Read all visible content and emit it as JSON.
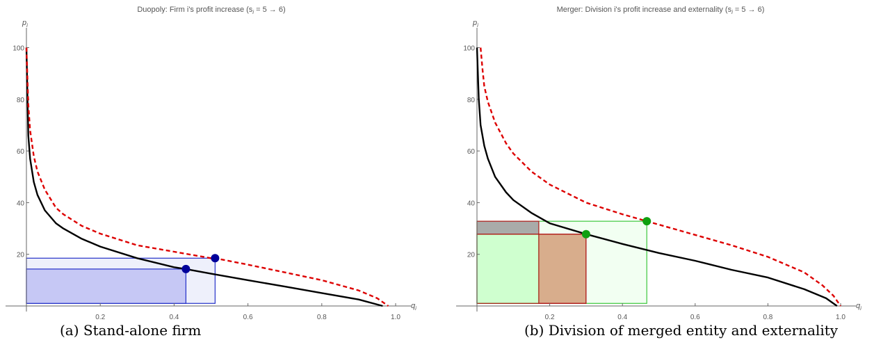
{
  "captions": {
    "a": "(a) Stand-alone firm",
    "b": "(b) Division of merged entity and externality"
  },
  "colors": {
    "base_curve": "#000000",
    "shifted_curve": "#dd0000",
    "blue_marker": "#00009a",
    "blue_fill": "#c6c8f5",
    "blue_fill_light": "#eef0fb",
    "blue_stroke": "#2430c8",
    "green_marker": "#10a010",
    "green_fill": "#cfffcf",
    "green_fill_light": "#f2fff2",
    "green_stroke": "#3cc83c",
    "red_stroke": "#b01818",
    "gray_fill": "#a9aba9",
    "brown_fill": "#d8ad8c"
  },
  "chart_data": [
    {
      "type": "line",
      "title": "Duopoly: Firm i's profit increase (s",
      "title_sub": "i",
      "title_tail": " = 5 → 6)",
      "xlabel": "q",
      "xlabel_sub": "i",
      "ylabel": "p",
      "ylabel_sub": "i",
      "xlim": [
        0,
        1.0
      ],
      "ylim": [
        0,
        100
      ],
      "xticks": [
        0.2,
        0.4,
        0.6,
        0.8,
        1.0
      ],
      "xtick_labels": [
        "0.2",
        "0.4",
        "0.6",
        "0.8",
        "1.0"
      ],
      "yticks": [
        20,
        40,
        60,
        80,
        100
      ],
      "ytick_labels": [
        "20",
        "40",
        "60",
        "80",
        "100"
      ],
      "series": [
        {
          "style": "solid",
          "points": [
            [
              0.0,
              100
            ],
            [
              0.005,
              66
            ],
            [
              0.01,
              57
            ],
            [
              0.02,
              48
            ],
            [
              0.03,
              43
            ],
            [
              0.05,
              37
            ],
            [
              0.08,
              32
            ],
            [
              0.1,
              30
            ],
            [
              0.15,
              26
            ],
            [
              0.2,
              23
            ],
            [
              0.3,
              18.5
            ],
            [
              0.4,
              15
            ],
            [
              0.432,
              14.3
            ],
            [
              0.5,
              12.5
            ],
            [
              0.6,
              10
            ],
            [
              0.7,
              7.5
            ],
            [
              0.8,
              5
            ],
            [
              0.9,
              2.5
            ],
            [
              0.965,
              0
            ]
          ]
        },
        {
          "style": "dashed",
          "points": [
            [
              0.0,
              100
            ],
            [
              0.005,
              78
            ],
            [
              0.01,
              68
            ],
            [
              0.02,
              58
            ],
            [
              0.03,
              52
            ],
            [
              0.05,
              45
            ],
            [
              0.08,
              38
            ],
            [
              0.1,
              35.5
            ],
            [
              0.15,
              31
            ],
            [
              0.2,
              28
            ],
            [
              0.3,
              23.5
            ],
            [
              0.4,
              21
            ],
            [
              0.5,
              18.5
            ],
            [
              0.511,
              18.5
            ],
            [
              0.6,
              16
            ],
            [
              0.7,
              13
            ],
            [
              0.8,
              10
            ],
            [
              0.9,
              6
            ],
            [
              0.95,
              3
            ],
            [
              0.98,
              0
            ]
          ]
        }
      ],
      "points": [
        {
          "x": 0.432,
          "y": 14.3,
          "role": "base optimum"
        },
        {
          "x": 0.511,
          "y": 18.5,
          "role": "shifted optimum"
        }
      ],
      "rectangles": [
        {
          "x0": 0,
          "x1": 0.511,
          "y0": 1,
          "y1": 18.5,
          "fill": "blue_fill_light"
        },
        {
          "x0": 0,
          "x1": 0.432,
          "y0": 1,
          "y1": 14.3,
          "fill": "blue_fill"
        }
      ]
    },
    {
      "type": "line",
      "title": "Merger: Division i's profit increase and externality (s",
      "title_sub": "i",
      "title_tail": " = 5 → 6)",
      "xlabel": "q",
      "xlabel_sub": "i",
      "ylabel": "p",
      "ylabel_sub": "i",
      "xlim": [
        0,
        1.0
      ],
      "ylim": [
        0,
        100
      ],
      "xticks": [
        0.2,
        0.4,
        0.6,
        0.8,
        1.0
      ],
      "xtick_labels": [
        "0.2",
        "0.4",
        "0.6",
        "0.8",
        "1.0"
      ],
      "yticks": [
        20,
        40,
        60,
        80,
        100
      ],
      "ytick_labels": [
        "20",
        "40",
        "60",
        "80",
        "100"
      ],
      "series": [
        {
          "style": "solid",
          "points": [
            [
              0.0,
              100
            ],
            [
              0.005,
              80
            ],
            [
              0.01,
              70
            ],
            [
              0.02,
              62
            ],
            [
              0.03,
              57
            ],
            [
              0.05,
              50
            ],
            [
              0.08,
              44
            ],
            [
              0.1,
              41
            ],
            [
              0.15,
              36
            ],
            [
              0.2,
              32
            ],
            [
              0.3,
              27.8
            ],
            [
              0.4,
              24
            ],
            [
              0.5,
              20.5
            ],
            [
              0.6,
              17.5
            ],
            [
              0.7,
              14
            ],
            [
              0.8,
              11
            ],
            [
              0.9,
              6.5
            ],
            [
              0.96,
              3
            ],
            [
              0.99,
              0
            ]
          ]
        },
        {
          "style": "dashed",
          "points": [
            [
              0.01,
              100
            ],
            [
              0.015,
              92
            ],
            [
              0.02,
              85
            ],
            [
              0.03,
              79
            ],
            [
              0.05,
              71
            ],
            [
              0.08,
              63
            ],
            [
              0.1,
              59
            ],
            [
              0.15,
              52
            ],
            [
              0.2,
              47
            ],
            [
              0.3,
              40
            ],
            [
              0.4,
              35.5
            ],
            [
              0.467,
              32.8
            ],
            [
              0.5,
              31.5
            ],
            [
              0.6,
              27.5
            ],
            [
              0.7,
              23.5
            ],
            [
              0.8,
              19
            ],
            [
              0.9,
              13
            ],
            [
              0.95,
              8
            ],
            [
              0.98,
              4
            ],
            [
              1.0,
              0
            ]
          ]
        }
      ],
      "points": [
        {
          "x": 0.3,
          "y": 27.8,
          "role": "base optimum"
        },
        {
          "x": 0.467,
          "y": 32.8,
          "role": "shifted optimum"
        }
      ],
      "rectangles": [
        {
          "x0": 0,
          "x1": 0.467,
          "y0": 1,
          "y1": 32.8,
          "fill": "green_fill_light",
          "stroke": "green_stroke"
        },
        {
          "x0": 0,
          "x1": 0.17,
          "y0": 1,
          "y1": 27.8,
          "fill": "green_fill",
          "stroke": "green_stroke"
        },
        {
          "x0": 0,
          "x1": 0.17,
          "y0": 27.8,
          "y1": 32.8,
          "fill": "gray_fill",
          "stroke": "red_stroke"
        },
        {
          "x0": 0.17,
          "x1": 0.3,
          "y0": 1,
          "y1": 27.8,
          "fill": "brown_fill",
          "stroke": "red_stroke"
        },
        {
          "x0": 0,
          "x1": 0.3,
          "y0": 1,
          "y1": 27.8,
          "fill": "none",
          "stroke": "red_stroke"
        }
      ]
    }
  ]
}
